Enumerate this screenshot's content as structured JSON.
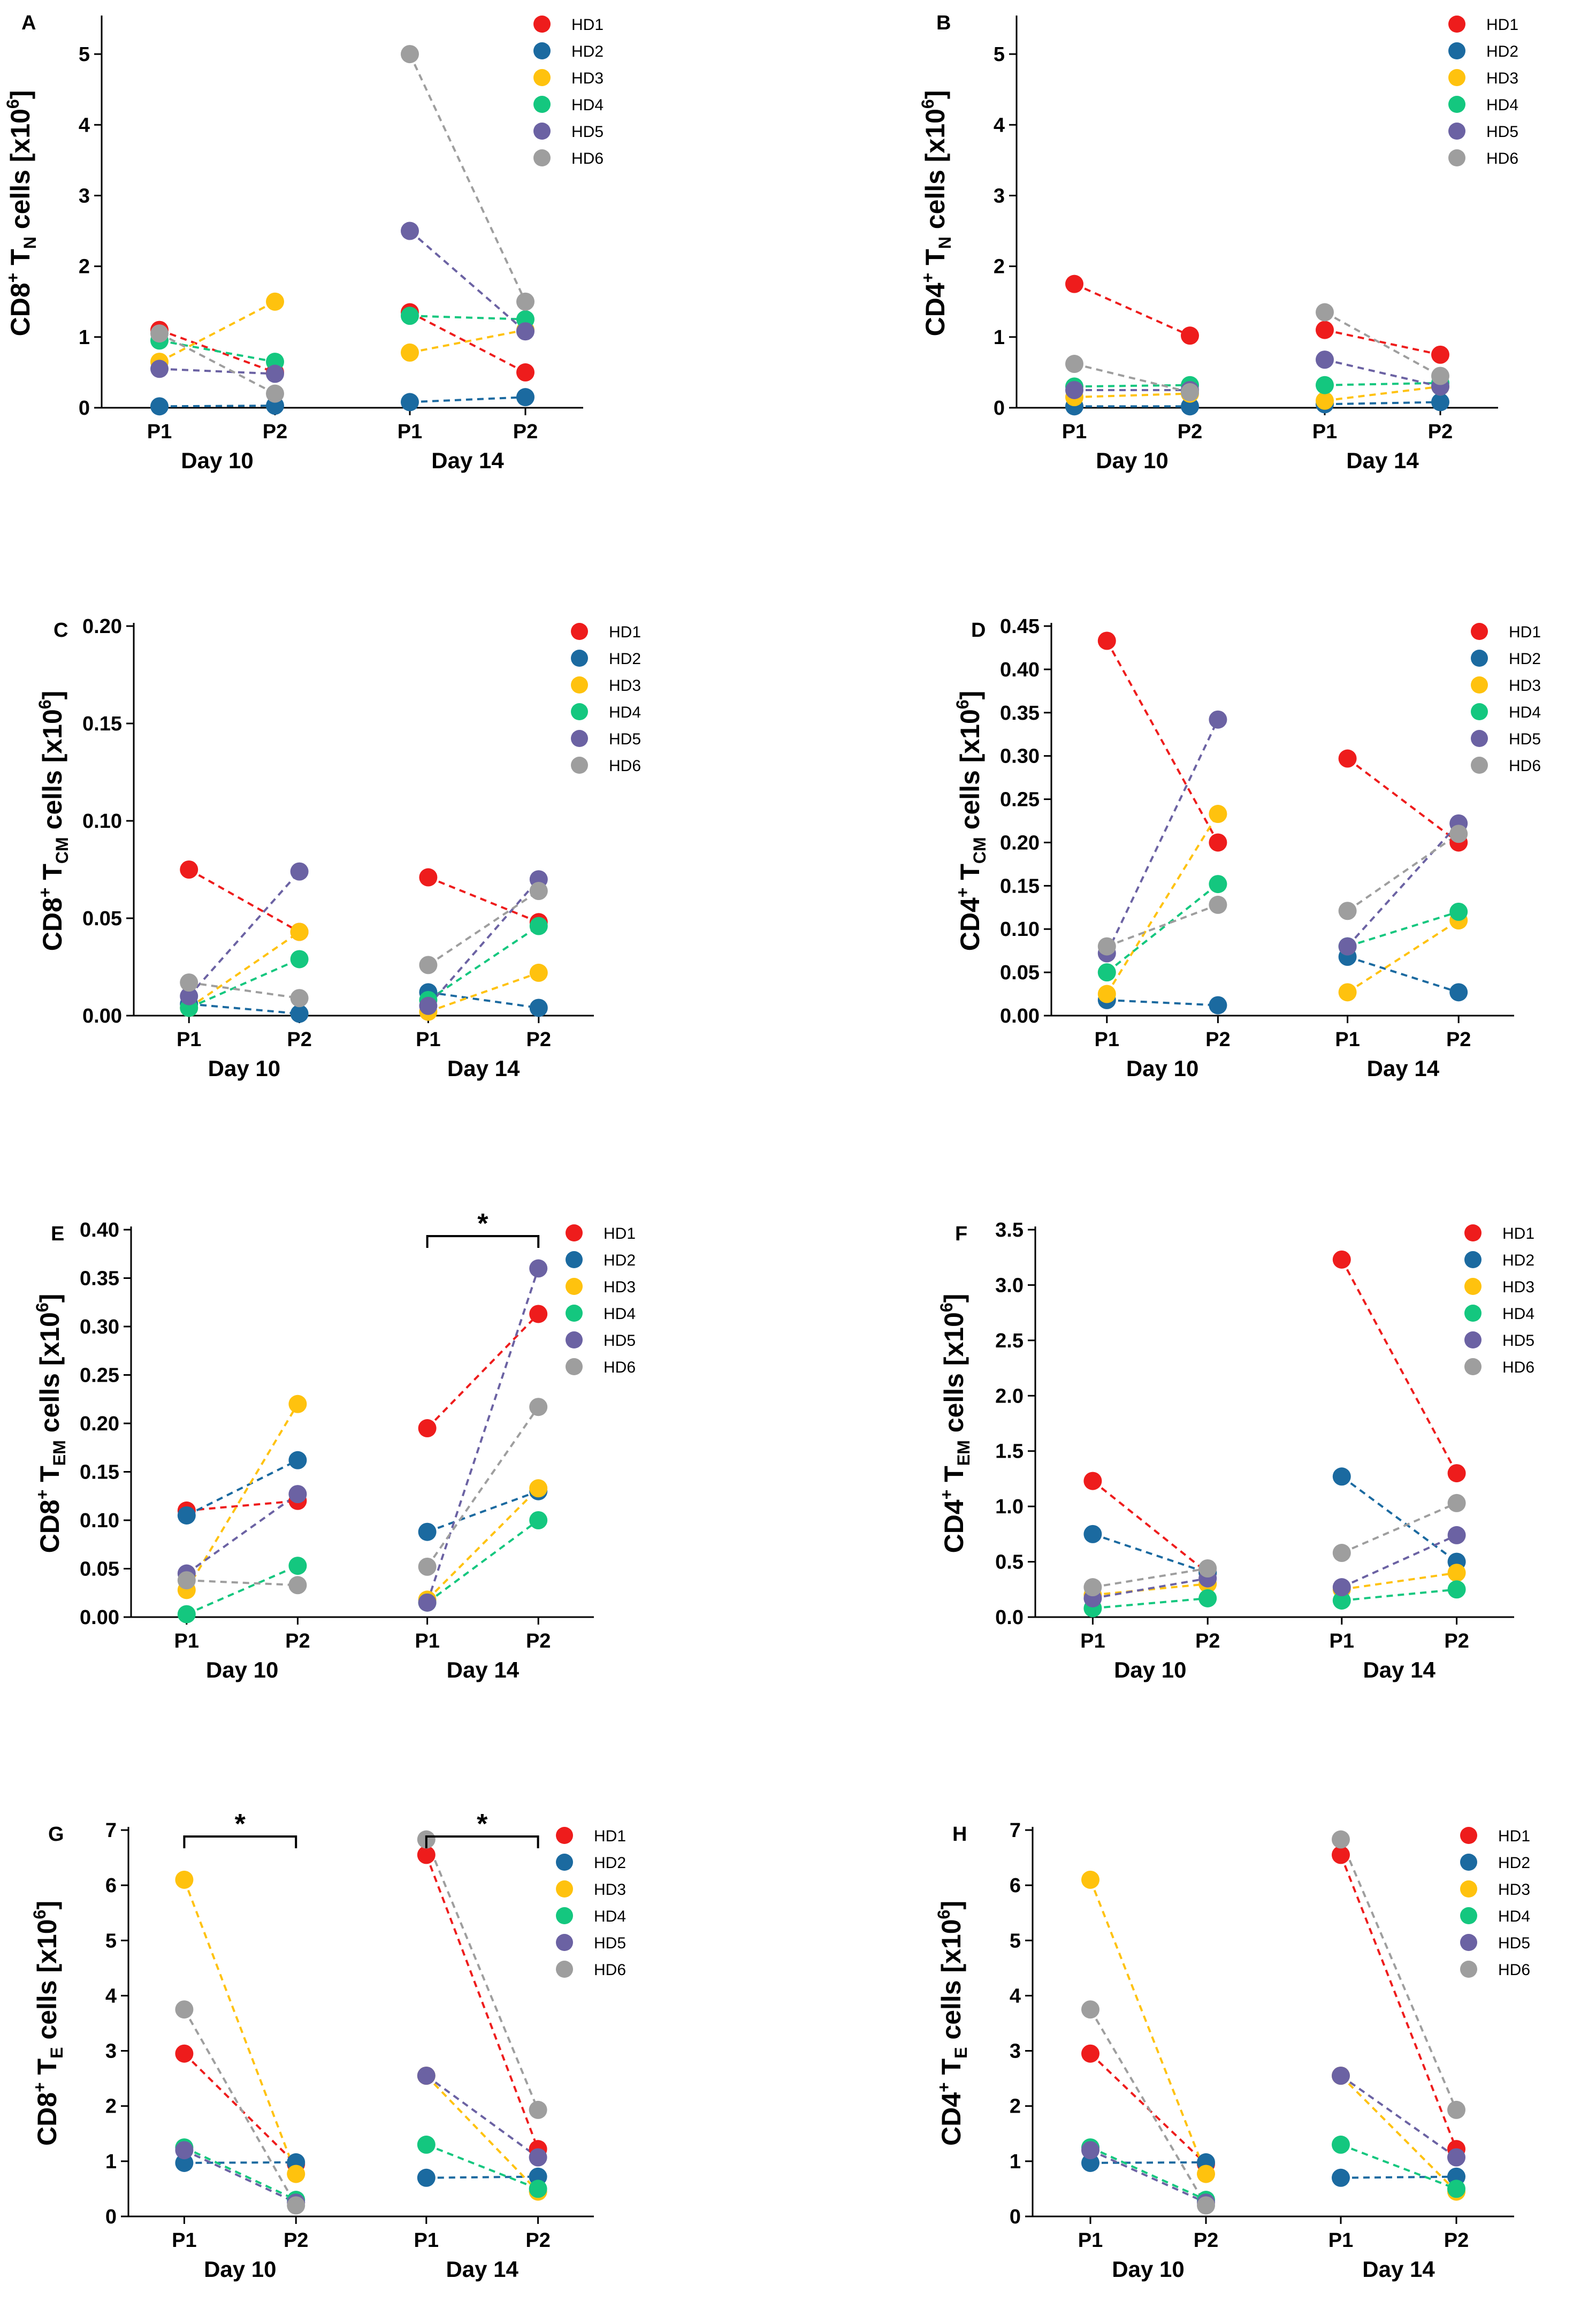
{
  "legend_labels": [
    "HD1",
    "HD2",
    "HD3",
    "HD4",
    "HD5",
    "HD6"
  ],
  "legend_colors": [
    "#ee1c1c",
    "#1b6aa0",
    "#ffc20e",
    "#14c77f",
    "#6b62a3",
    "#9e9e9e"
  ],
  "chart_data": [
    {
      "type": "scatter",
      "panel": "A",
      "ylabel": {
        "base": "CD8",
        "sup": "+",
        "cell": "T",
        "sub": "N",
        "suffix": " cells [x10",
        "exp": "6",
        "end": "]"
      },
      "yticks": [
        "0",
        "1",
        "2",
        "3",
        "4",
        "5"
      ],
      "ylim": [
        0,
        5.5
      ],
      "x_ticks": [
        "P1",
        "P2",
        "P1",
        "P2"
      ],
      "groups": [
        "Day 10",
        "Day 14"
      ],
      "series": [
        {
          "name": "HD1",
          "values": [
            1.1,
            0.5,
            1.35,
            0.5
          ]
        },
        {
          "name": "HD2",
          "values": [
            0.02,
            0.03,
            0.08,
            0.15
          ]
        },
        {
          "name": "HD3",
          "values": [
            0.65,
            1.5,
            0.78,
            1.1
          ]
        },
        {
          "name": "HD4",
          "values": [
            0.95,
            0.65,
            1.3,
            1.25
          ]
        },
        {
          "name": "HD5",
          "values": [
            0.55,
            0.48,
            2.5,
            1.08
          ]
        },
        {
          "name": "HD6",
          "values": [
            1.05,
            0.2,
            5.0,
            1.5
          ]
        }
      ]
    },
    {
      "type": "scatter",
      "panel": "B",
      "ylabel": {
        "base": "CD4",
        "sup": "+",
        "cell": "T",
        "sub": "N",
        "suffix": " cells [x10",
        "exp": "6",
        "end": "]"
      },
      "yticks": [
        "0",
        "1",
        "2",
        "3",
        "4",
        "5"
      ],
      "ylim": [
        0,
        5.5
      ],
      "x_ticks": [
        "P1",
        "P2",
        "P1",
        "P2"
      ],
      "groups": [
        "Day 10",
        "Day 14"
      ],
      "series": [
        {
          "name": "HD1",
          "values": [
            1.75,
            1.02,
            1.1,
            0.75
          ]
        },
        {
          "name": "HD2",
          "values": [
            0.02,
            0.02,
            0.05,
            0.08
          ]
        },
        {
          "name": "HD3",
          "values": [
            0.15,
            0.2,
            0.1,
            0.3
          ]
        },
        {
          "name": "HD4",
          "values": [
            0.3,
            0.32,
            0.32,
            0.35
          ]
        },
        {
          "name": "HD5",
          "values": [
            0.25,
            0.25,
            0.68,
            0.3
          ]
        },
        {
          "name": "HD6",
          "values": [
            0.62,
            0.22,
            1.35,
            0.45
          ]
        }
      ]
    },
    {
      "type": "scatter",
      "panel": "C",
      "ylabel": {
        "base": "CD8",
        "sup": "+",
        "cell": "T",
        "sub": "CM",
        "suffix": " cells [x10",
        "exp": "6",
        "end": "]"
      },
      "yticks": [
        "0.00",
        "0.05",
        "0.10",
        "0.15",
        "0.20"
      ],
      "ylim": [
        0,
        0.2
      ],
      "x_ticks": [
        "P1",
        "P2",
        "P1",
        "P2"
      ],
      "groups": [
        "Day 10",
        "Day 14"
      ],
      "series": [
        {
          "name": "HD1",
          "values": [
            0.075,
            0.043,
            0.071,
            0.048
          ]
        },
        {
          "name": "HD2",
          "values": [
            0.006,
            0.001,
            0.012,
            0.004
          ]
        },
        {
          "name": "HD3",
          "values": [
            0.004,
            0.043,
            0.002,
            0.022
          ]
        },
        {
          "name": "HD4",
          "values": [
            0.004,
            0.029,
            0.008,
            0.046
          ]
        },
        {
          "name": "HD5",
          "values": [
            0.01,
            0.074,
            0.005,
            0.07
          ]
        },
        {
          "name": "HD6",
          "values": [
            0.017,
            0.009,
            0.026,
            0.064
          ]
        }
      ]
    },
    {
      "type": "scatter",
      "panel": "D",
      "ylabel": {
        "base": "CD4",
        "sup": "+",
        "cell": "T",
        "sub": "CM",
        "suffix": " cells [x10",
        "exp": "6",
        "end": "]"
      },
      "yticks": [
        "0.00",
        "0.05",
        "0.10",
        "0.15",
        "0.20",
        "0.25",
        "0.30",
        "0.35",
        "0.40",
        "0.45"
      ],
      "ylim": [
        0,
        0.45
      ],
      "x_ticks": [
        "P1",
        "P2",
        "P1",
        "P2"
      ],
      "groups": [
        "Day 10",
        "Day 14"
      ],
      "series": [
        {
          "name": "HD1",
          "values": [
            0.433,
            0.2,
            0.297,
            0.2
          ]
        },
        {
          "name": "HD2",
          "values": [
            0.018,
            0.012,
            0.068,
            0.027
          ]
        },
        {
          "name": "HD3",
          "values": [
            0.025,
            0.233,
            0.027,
            0.11
          ]
        },
        {
          "name": "HD4",
          "values": [
            0.05,
            0.152,
            0.08,
            0.12
          ]
        },
        {
          "name": "HD5",
          "values": [
            0.072,
            0.342,
            0.08,
            0.222
          ]
        },
        {
          "name": "HD6",
          "values": [
            0.08,
            0.128,
            0.121,
            0.21
          ]
        }
      ]
    },
    {
      "type": "scatter",
      "panel": "E",
      "ylabel": {
        "base": "CD8",
        "sup": "+",
        "cell": "T",
        "sub": "EM",
        "suffix": " cells [x10",
        "exp": "6",
        "end": "]"
      },
      "yticks": [
        "0.00",
        "0.05",
        "0.10",
        "0.15",
        "0.20",
        "0.25",
        "0.30",
        "0.35",
        "0.40"
      ],
      "ylim": [
        0,
        0.4
      ],
      "x_ticks": [
        "P1",
        "P2",
        "P1",
        "P2"
      ],
      "groups": [
        "Day 10",
        "Day 14"
      ],
      "significance": [
        {
          "from": 2,
          "to": 3,
          "label": "*"
        }
      ],
      "series": [
        {
          "name": "HD1",
          "values": [
            0.11,
            0.12,
            0.195,
            0.313
          ]
        },
        {
          "name": "HD2",
          "values": [
            0.105,
            0.162,
            0.088,
            0.13
          ]
        },
        {
          "name": "HD3",
          "values": [
            0.028,
            0.22,
            0.018,
            0.133
          ]
        },
        {
          "name": "HD4",
          "values": [
            0.003,
            0.053,
            0.015,
            0.1
          ]
        },
        {
          "name": "HD5",
          "values": [
            0.045,
            0.127,
            0.015,
            0.36
          ]
        },
        {
          "name": "HD6",
          "values": [
            0.038,
            0.033,
            0.052,
            0.217
          ]
        }
      ]
    },
    {
      "type": "scatter",
      "panel": "F",
      "ylabel": {
        "base": "CD4",
        "sup": "+",
        "cell": "T",
        "sub": "EM",
        "suffix": " cells [x10",
        "exp": "6",
        "end": "]"
      },
      "yticks": [
        "0.0",
        "0.5",
        "1.0",
        "1.5",
        "2.0",
        "2.5",
        "3.0",
        "3.5"
      ],
      "ylim": [
        0,
        3.5
      ],
      "x_ticks": [
        "P1",
        "P2",
        "P1",
        "P2"
      ],
      "groups": [
        "Day 10",
        "Day 14"
      ],
      "series": [
        {
          "name": "HD1",
          "values": [
            1.23,
            0.4,
            3.23,
            1.3
          ]
        },
        {
          "name": "HD2",
          "values": [
            0.75,
            0.4,
            1.27,
            0.5
          ]
        },
        {
          "name": "HD3",
          "values": [
            0.2,
            0.3,
            0.25,
            0.4
          ]
        },
        {
          "name": "HD4",
          "values": [
            0.08,
            0.17,
            0.15,
            0.25
          ]
        },
        {
          "name": "HD5",
          "values": [
            0.17,
            0.35,
            0.27,
            0.74
          ]
        },
        {
          "name": "HD6",
          "values": [
            0.27,
            0.44,
            0.58,
            1.03
          ]
        }
      ]
    },
    {
      "type": "scatter",
      "panel": "G",
      "ylabel": {
        "base": "CD8",
        "sup": "+",
        "cell": "T",
        "sub": "E",
        "suffix": " cells [x10",
        "exp": "6",
        "end": "]"
      },
      "yticks": [
        "0",
        "1",
        "2",
        "3",
        "4",
        "5",
        "6",
        "7"
      ],
      "ylim": [
        0,
        7
      ],
      "x_ticks": [
        "P1",
        "P2",
        "P1",
        "P2"
      ],
      "groups": [
        "Day 10",
        "Day 14"
      ],
      "significance": [
        {
          "from": 0,
          "to": 1,
          "label": "*"
        },
        {
          "from": 2,
          "to": 3,
          "label": "*"
        }
      ],
      "series": [
        {
          "name": "HD1",
          "values": [
            2.95,
            0.95,
            6.55,
            1.22
          ]
        },
        {
          "name": "HD2",
          "values": [
            0.97,
            0.98,
            0.7,
            0.72
          ]
        },
        {
          "name": "HD3",
          "values": [
            6.1,
            0.77,
            2.55,
            0.45
          ]
        },
        {
          "name": "HD4",
          "values": [
            1.25,
            0.3,
            1.3,
            0.5
          ]
        },
        {
          "name": "HD5",
          "values": [
            1.2,
            0.25,
            2.55,
            1.07
          ]
        },
        {
          "name": "HD6",
          "values": [
            3.75,
            0.2,
            6.83,
            1.93
          ]
        }
      ]
    },
    {
      "type": "scatter",
      "panel": "H",
      "ylabel": {
        "base": "CD4",
        "sup": "+",
        "cell": "T",
        "sub": "E",
        "suffix": " cells [x10",
        "exp": "6",
        "end": "]"
      },
      "yticks": [
        "0",
        "1",
        "2",
        "3",
        "4",
        "5",
        "6",
        "7"
      ],
      "ylim": [
        0,
        7
      ],
      "x_ticks": [
        "P1",
        "P2",
        "P1",
        "P2"
      ],
      "groups": [
        "Day 10",
        "Day 14"
      ],
      "series": [
        {
          "name": "HD1",
          "values": [
            2.95,
            0.95,
            6.55,
            1.22
          ]
        },
        {
          "name": "HD2",
          "values": [
            0.97,
            0.98,
            0.7,
            0.72
          ]
        },
        {
          "name": "HD3",
          "values": [
            6.1,
            0.77,
            2.55,
            0.45
          ]
        },
        {
          "name": "HD4",
          "values": [
            1.25,
            0.3,
            1.3,
            0.5
          ]
        },
        {
          "name": "HD5",
          "values": [
            1.2,
            0.25,
            2.55,
            1.07
          ]
        },
        {
          "name": "HD6",
          "values": [
            3.75,
            0.2,
            6.83,
            1.93
          ]
        }
      ]
    }
  ]
}
